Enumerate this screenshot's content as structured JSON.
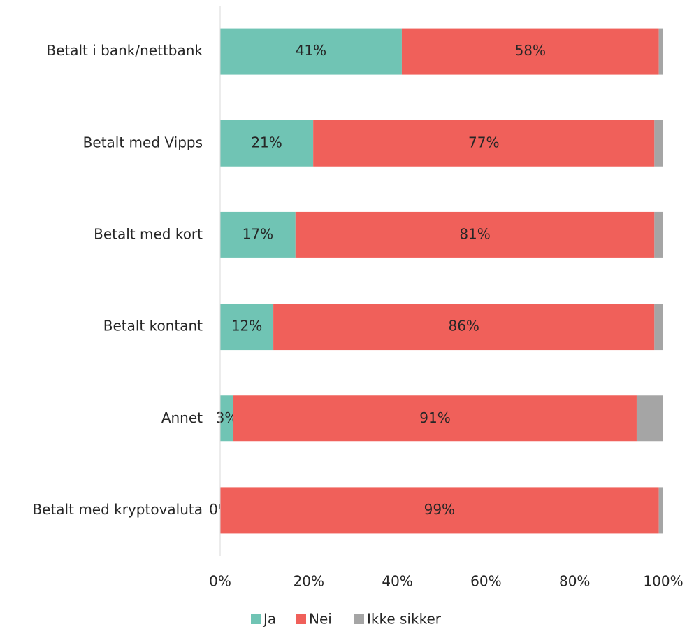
{
  "chart_data": {
    "type": "stacked_bar_horizontal",
    "categories": [
      "Betalt i bank/nettbank",
      "Betalt med Vipps",
      "Betalt med kort",
      "Betalt kontant",
      "Annet",
      "Betalt med kryptovaluta"
    ],
    "series": [
      {
        "name": "Ja",
        "color": "#70c4b4",
        "values": [
          41,
          21,
          17,
          12,
          3,
          0
        ],
        "value_labels": [
          "41%",
          "21%",
          "17%",
          "12%",
          "3%",
          "0%"
        ]
      },
      {
        "name": "Nei",
        "color": "#f0605a",
        "values": [
          58,
          77,
          81,
          86,
          91,
          99
        ],
        "value_labels": [
          "58%",
          "77%",
          "81%",
          "86%",
          "91%",
          "99%"
        ]
      },
      {
        "name": "Ikke sikker",
        "color": "#a5a5a5",
        "values": [
          1,
          2,
          2,
          2,
          6,
          1
        ]
      }
    ],
    "xlim": [
      0,
      100
    ],
    "xticks": [
      {
        "value": 0,
        "label": "0%"
      },
      {
        "value": 20,
        "label": "20%"
      },
      {
        "value": 40,
        "label": "40%"
      },
      {
        "value": 60,
        "label": "60%"
      },
      {
        "value": 80,
        "label": "80%"
      },
      {
        "value": 100,
        "label": "100%"
      }
    ],
    "legend": "bottom"
  }
}
